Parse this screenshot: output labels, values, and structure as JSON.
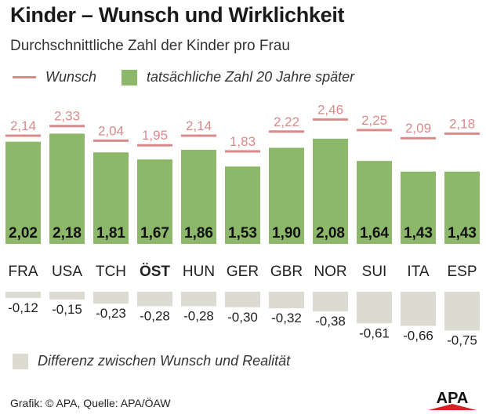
{
  "title": "Kinder – Wunsch und Wirklichkeit",
  "subtitle": "Durchschnittliche Zahl der Kinder pro Frau",
  "legend": {
    "wish": "Wunsch",
    "actual": "tatsächliche Zahl 20 Jahre später",
    "diff": "Differenz zwischen Wunsch und Realität"
  },
  "source": "Grafik: © APA, Quelle: APA/ÖAW",
  "logo": "APA",
  "colors": {
    "wish": "#d98a8a",
    "actual": "#8db86a",
    "diff": "#dcdbd2",
    "logo_red": "#d2232a"
  },
  "chart_data": {
    "type": "bar",
    "title": "Kinder – Wunsch und Wirklichkeit",
    "subtitle": "Durchschnittliche Zahl der Kinder pro Frau",
    "categories": [
      "FRA",
      "USA",
      "TCH",
      "ÖST",
      "HUN",
      "GER",
      "GBR",
      "NOR",
      "SUI",
      "ITA",
      "ESP"
    ],
    "highlight_category": "ÖST",
    "series": [
      {
        "name": "Wunsch",
        "style": "marker-line",
        "values": [
          2.14,
          2.33,
          2.04,
          1.95,
          2.14,
          1.83,
          2.22,
          2.46,
          2.25,
          2.09,
          2.18
        ],
        "labels": [
          "2,14",
          "2,33",
          "2,04",
          "1,95",
          "2,14",
          "1,83",
          "2,22",
          "2,46",
          "2,25",
          "2,09",
          "2,18"
        ]
      },
      {
        "name": "tatsächliche Zahl 20 Jahre später",
        "style": "bar",
        "values": [
          2.02,
          2.18,
          1.81,
          1.67,
          1.86,
          1.53,
          1.9,
          2.08,
          1.64,
          1.43,
          1.43
        ],
        "labels": [
          "2,02",
          "2,18",
          "1,81",
          "1,67",
          "1,86",
          "1,53",
          "1,90",
          "2,08",
          "1,64",
          "1,43",
          "1,43"
        ]
      },
      {
        "name": "Differenz zwischen Wunsch und Realität",
        "style": "bar-down",
        "values": [
          -0.12,
          -0.15,
          -0.23,
          -0.28,
          -0.28,
          -0.3,
          -0.32,
          -0.38,
          -0.61,
          -0.66,
          -0.75
        ],
        "labels": [
          "-0,12",
          "-0,15",
          "-0,23",
          "-0,28",
          "-0,28",
          "-0,30",
          "-0,32",
          "-0,38",
          "-0,61",
          "-0,66",
          "-0,75"
        ]
      }
    ],
    "ylim": [
      0,
      2.5
    ]
  }
}
